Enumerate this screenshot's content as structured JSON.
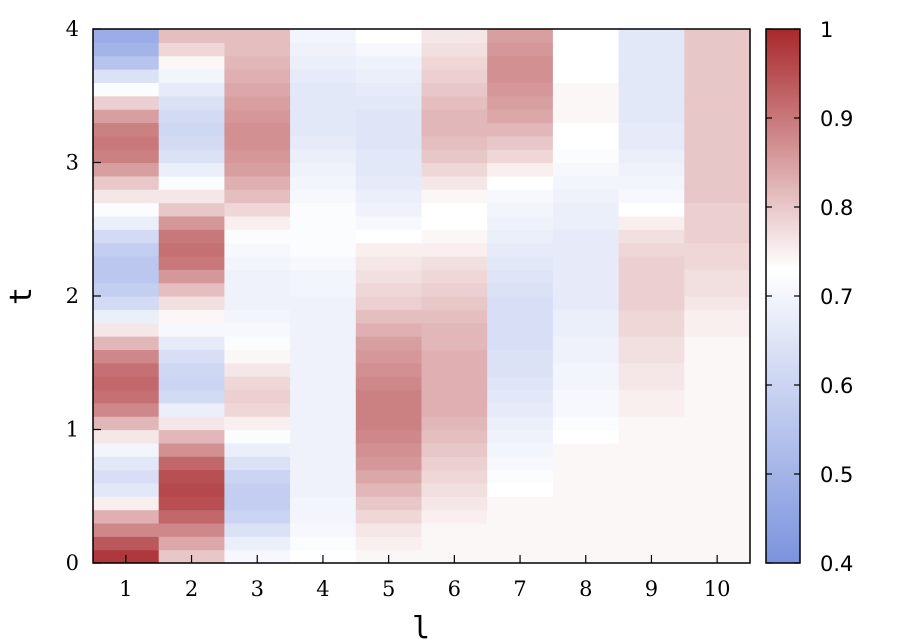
{
  "chart_data": {
    "type": "heatmap",
    "title": "",
    "xlabel": "l",
    "ylabel": "t",
    "x_categories": [
      "1",
      "2",
      "3",
      "4",
      "5",
      "6",
      "7",
      "8",
      "9",
      "10"
    ],
    "y_ticks": [
      "0",
      "1",
      "2",
      "3",
      "4"
    ],
    "ylim": [
      0,
      4
    ],
    "colorbar": {
      "min": 0.4,
      "max": 1,
      "ticks": [
        "0.4",
        "0.5",
        "0.6",
        "0.7",
        "0.8",
        "0.9",
        "1"
      ],
      "colors": {
        "low": "#7b93de",
        "mid": "#ffffff",
        "high": "#a8282c"
      },
      "mid_value": 0.73
    },
    "grid": false,
    "legend": "right",
    "rows_t": [
      0.0,
      0.1,
      0.2,
      0.3,
      0.4,
      0.5,
      0.6,
      0.7,
      0.8,
      0.9,
      1.0,
      1.1,
      1.2,
      1.3,
      1.4,
      1.5,
      1.6,
      1.7,
      1.8,
      1.9,
      2.0,
      2.1,
      2.2,
      2.3,
      2.4,
      2.5,
      2.6,
      2.7,
      2.8,
      2.9,
      3.0,
      3.1,
      3.2,
      3.3,
      3.4,
      3.5,
      3.6,
      3.7,
      3.8,
      3.9
    ],
    "values": [
      [
        0.98,
        0.94,
        0.88,
        0.83,
        0.75,
        0.66,
        0.63,
        0.66,
        0.7,
        0.76,
        0.82,
        0.88,
        0.91,
        0.92,
        0.91,
        0.88,
        0.82,
        0.76,
        0.68,
        0.62,
        0.58,
        0.56,
        0.56,
        0.58,
        0.62,
        0.68,
        0.72,
        0.76,
        0.8,
        0.85,
        0.89,
        0.9,
        0.89,
        0.85,
        0.79,
        0.72,
        0.64,
        0.55,
        0.5,
        0.48
      ],
      [
        0.8,
        0.84,
        0.88,
        0.92,
        0.95,
        0.96,
        0.95,
        0.92,
        0.87,
        0.82,
        0.76,
        0.68,
        0.62,
        0.6,
        0.61,
        0.63,
        0.67,
        0.71,
        0.74,
        0.77,
        0.81,
        0.86,
        0.9,
        0.91,
        0.9,
        0.86,
        0.8,
        0.76,
        0.72,
        0.68,
        0.64,
        0.62,
        0.61,
        0.62,
        0.64,
        0.67,
        0.7,
        0.74,
        0.78,
        0.81
      ],
      [
        0.71,
        0.68,
        0.64,
        0.6,
        0.58,
        0.58,
        0.6,
        0.64,
        0.68,
        0.72,
        0.75,
        0.78,
        0.79,
        0.78,
        0.76,
        0.74,
        0.72,
        0.71,
        0.7,
        0.69,
        0.69,
        0.69,
        0.7,
        0.71,
        0.72,
        0.75,
        0.78,
        0.81,
        0.83,
        0.85,
        0.86,
        0.87,
        0.87,
        0.86,
        0.85,
        0.84,
        0.83,
        0.82,
        0.81,
        0.81
      ],
      [
        0.73,
        0.72,
        0.71,
        0.7,
        0.7,
        0.69,
        0.69,
        0.69,
        0.69,
        0.69,
        0.69,
        0.69,
        0.69,
        0.69,
        0.69,
        0.69,
        0.69,
        0.69,
        0.69,
        0.69,
        0.7,
        0.7,
        0.71,
        0.72,
        0.72,
        0.72,
        0.72,
        0.71,
        0.7,
        0.69,
        0.68,
        0.67,
        0.66,
        0.66,
        0.66,
        0.66,
        0.67,
        0.68,
        0.69,
        0.7
      ],
      [
        0.74,
        0.75,
        0.76,
        0.78,
        0.8,
        0.82,
        0.84,
        0.86,
        0.87,
        0.88,
        0.89,
        0.89,
        0.89,
        0.88,
        0.87,
        0.86,
        0.85,
        0.83,
        0.81,
        0.79,
        0.78,
        0.77,
        0.76,
        0.75,
        0.73,
        0.71,
        0.69,
        0.68,
        0.67,
        0.66,
        0.66,
        0.65,
        0.65,
        0.65,
        0.66,
        0.67,
        0.68,
        0.69,
        0.71,
        0.73
      ],
      [
        0.74,
        0.74,
        0.74,
        0.75,
        0.76,
        0.77,
        0.78,
        0.79,
        0.8,
        0.81,
        0.82,
        0.83,
        0.83,
        0.83,
        0.83,
        0.83,
        0.82,
        0.82,
        0.81,
        0.8,
        0.79,
        0.78,
        0.77,
        0.75,
        0.74,
        0.73,
        0.73,
        0.74,
        0.76,
        0.78,
        0.8,
        0.81,
        0.82,
        0.82,
        0.81,
        0.8,
        0.79,
        0.78,
        0.77,
        0.76
      ],
      [
        0.74,
        0.74,
        0.74,
        0.74,
        0.74,
        0.73,
        0.72,
        0.71,
        0.7,
        0.69,
        0.68,
        0.67,
        0.66,
        0.65,
        0.64,
        0.64,
        0.63,
        0.63,
        0.63,
        0.63,
        0.64,
        0.65,
        0.66,
        0.67,
        0.68,
        0.69,
        0.7,
        0.71,
        0.73,
        0.75,
        0.78,
        0.8,
        0.82,
        0.84,
        0.85,
        0.86,
        0.87,
        0.87,
        0.86,
        0.85
      ],
      [
        0.74,
        0.74,
        0.74,
        0.74,
        0.74,
        0.74,
        0.74,
        0.74,
        0.74,
        0.73,
        0.72,
        0.71,
        0.71,
        0.7,
        0.7,
        0.69,
        0.69,
        0.68,
        0.68,
        0.67,
        0.67,
        0.67,
        0.67,
        0.67,
        0.67,
        0.68,
        0.68,
        0.69,
        0.7,
        0.71,
        0.72,
        0.73,
        0.73,
        0.74,
        0.74,
        0.74,
        0.73,
        0.73,
        0.73,
        0.73
      ],
      [
        0.74,
        0.74,
        0.74,
        0.74,
        0.74,
        0.74,
        0.74,
        0.74,
        0.74,
        0.74,
        0.74,
        0.75,
        0.75,
        0.76,
        0.76,
        0.77,
        0.77,
        0.78,
        0.78,
        0.79,
        0.79,
        0.79,
        0.79,
        0.78,
        0.77,
        0.75,
        0.73,
        0.71,
        0.7,
        0.69,
        0.68,
        0.67,
        0.67,
        0.66,
        0.66,
        0.66,
        0.66,
        0.66,
        0.66,
        0.66
      ],
      [
        0.74,
        0.74,
        0.74,
        0.74,
        0.74,
        0.74,
        0.74,
        0.74,
        0.74,
        0.74,
        0.74,
        0.74,
        0.74,
        0.74,
        0.74,
        0.74,
        0.74,
        0.75,
        0.75,
        0.76,
        0.77,
        0.77,
        0.78,
        0.78,
        0.79,
        0.79,
        0.79,
        0.8,
        0.8,
        0.8,
        0.8,
        0.8,
        0.8,
        0.8,
        0.8,
        0.8,
        0.8,
        0.8,
        0.8,
        0.8
      ]
    ]
  }
}
